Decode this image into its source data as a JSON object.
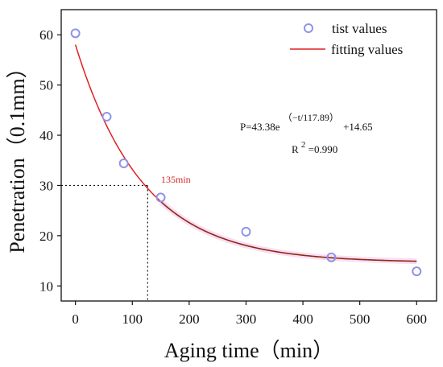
{
  "chart_data": {
    "type": "scatter",
    "xlabel": "Aging time（min）",
    "ylabel": "Penetration（0.1mm）",
    "xlim": [
      -25,
      635
    ],
    "ylim": [
      7,
      65
    ],
    "x_ticks": [
      0,
      100,
      200,
      300,
      400,
      500,
      600
    ],
    "y_ticks": [
      10,
      20,
      30,
      40,
      50,
      60
    ],
    "grid": false,
    "legend_position": "top-right",
    "series": [
      {
        "name": "tist values",
        "kind": "scatter",
        "color": "#8f93e8",
        "points": [
          {
            "x": 0,
            "y": 60.3
          },
          {
            "x": 55,
            "y": 43.7
          },
          {
            "x": 85,
            "y": 34.4
          },
          {
            "x": 150,
            "y": 27.6
          },
          {
            "x": 300,
            "y": 20.8
          },
          {
            "x": 450,
            "y": 15.7
          },
          {
            "x": 600,
            "y": 12.9
          }
        ]
      },
      {
        "name": "fitting values",
        "kind": "line",
        "color": "#e02020",
        "equation": {
          "a": 43.38,
          "tau": 117.89,
          "c": 14.65,
          "x_range": [
            0,
            600
          ]
        }
      }
    ],
    "annotations": {
      "equation_main": "P=43.38e",
      "equation_exp": "（−t/117.89）",
      "equation_tail": "+14.65",
      "r2_prefix": "R",
      "r2_exp": "2",
      "r2_value": "=0.990",
      "marker_label": "135min"
    },
    "reference_lines": {
      "x": 127,
      "y": 30
    }
  }
}
